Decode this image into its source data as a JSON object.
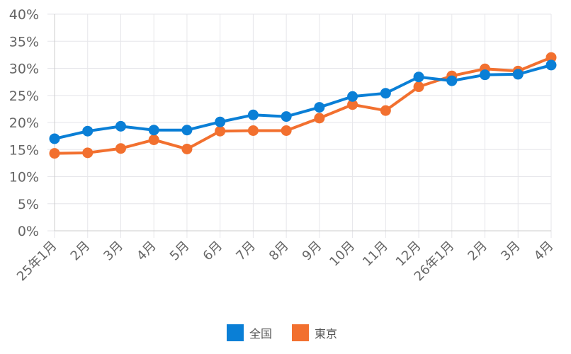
{
  "chart_data": {
    "type": "line",
    "categories": [
      "25年1月",
      "2月",
      "3月",
      "4月",
      "5月",
      "6月",
      "7月",
      "8月",
      "9月",
      "10月",
      "11月",
      "12月",
      "26年1月",
      "2月",
      "3月",
      "4月"
    ],
    "series": [
      {
        "name": "全国",
        "color": "#0a7fd6",
        "values": [
          17.0,
          18.4,
          19.3,
          18.6,
          18.6,
          20.1,
          21.4,
          21.1,
          22.8,
          24.8,
          25.4,
          28.4,
          27.7,
          28.8,
          28.9,
          30.6
        ]
      },
      {
        "name": "東京",
        "color": "#f2702f",
        "values": [
          14.3,
          14.4,
          15.2,
          16.8,
          15.1,
          18.4,
          18.5,
          18.5,
          20.8,
          23.3,
          22.2,
          26.6,
          28.6,
          29.9,
          29.5,
          32.0
        ]
      }
    ],
    "y_ticks": [
      "0%",
      "5%",
      "10%",
      "15%",
      "20%",
      "25%",
      "30%",
      "35%",
      "40%"
    ],
    "ylim": [
      0,
      40
    ],
    "grid": true,
    "legend_position": "bottom-center"
  }
}
